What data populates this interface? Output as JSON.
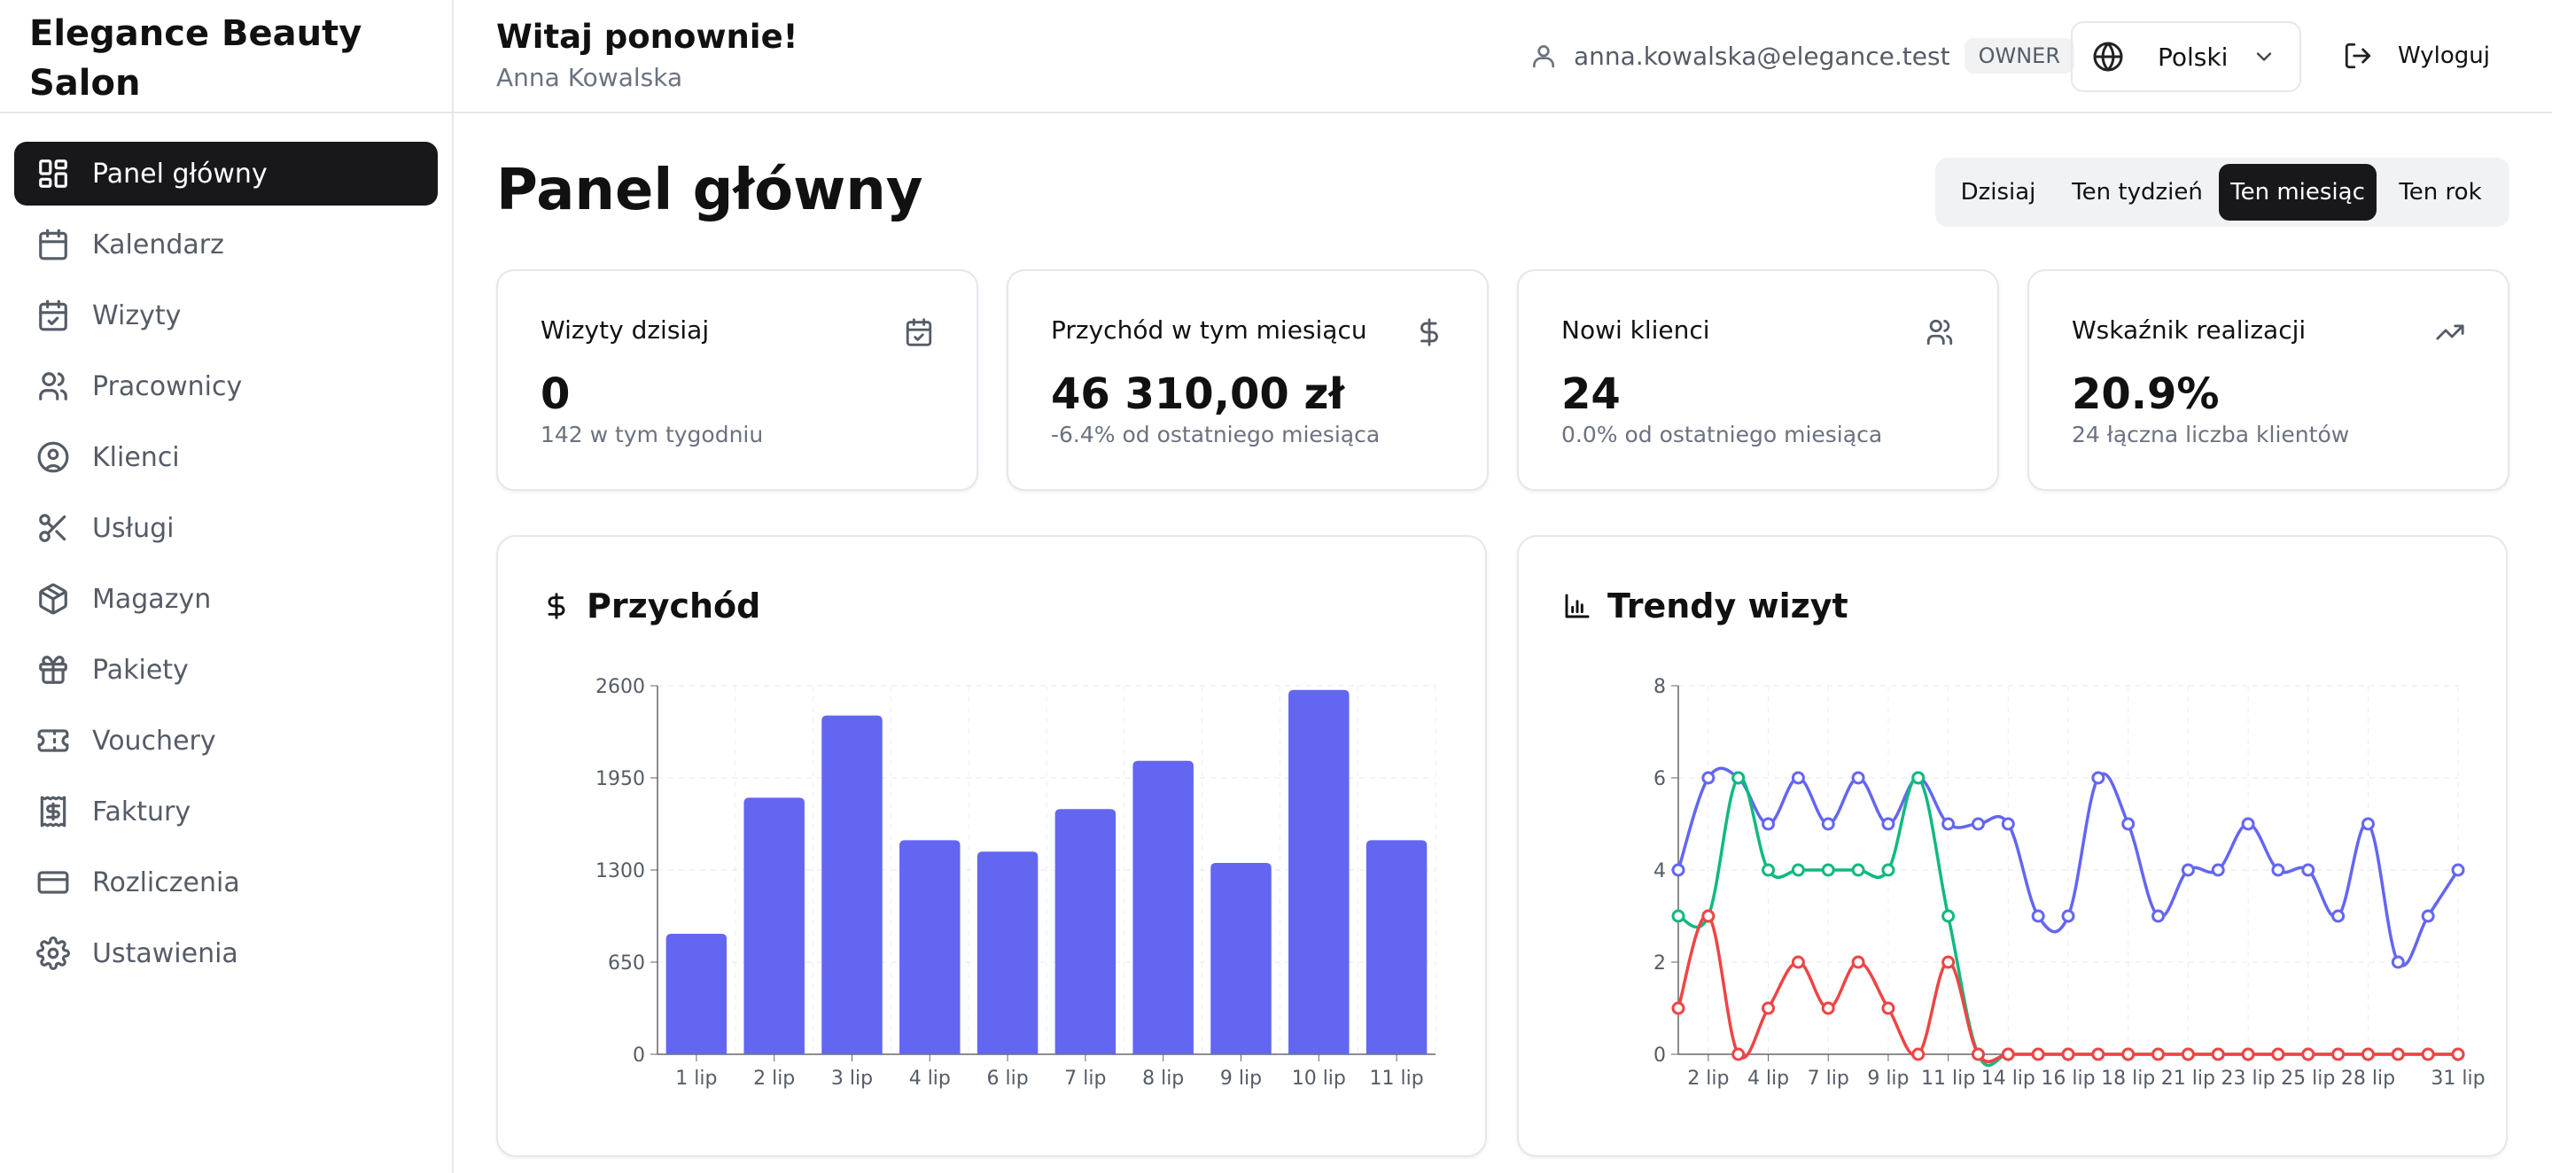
{
  "app": {
    "name": "Elegance Beauty Salon"
  },
  "sidebar": {
    "items": [
      {
        "label": "Panel główny",
        "icon": "dashboard-icon",
        "active": true
      },
      {
        "label": "Kalendarz",
        "icon": "calendar-icon",
        "active": false
      },
      {
        "label": "Wizyty",
        "icon": "calendar-check-icon",
        "active": false
      },
      {
        "label": "Pracownicy",
        "icon": "users-icon",
        "active": false
      },
      {
        "label": "Klienci",
        "icon": "user-circle-icon",
        "active": false
      },
      {
        "label": "Usługi",
        "icon": "scissors-icon",
        "active": false
      },
      {
        "label": "Magazyn",
        "icon": "package-icon",
        "active": false
      },
      {
        "label": "Pakiety",
        "icon": "gift-icon",
        "active": false
      },
      {
        "label": "Vouchery",
        "icon": "ticket-icon",
        "active": false
      },
      {
        "label": "Faktury",
        "icon": "receipt-icon",
        "active": false
      },
      {
        "label": "Rozliczenia",
        "icon": "credit-card-icon",
        "active": false
      },
      {
        "label": "Ustawienia",
        "icon": "gear-icon",
        "active": false
      }
    ]
  },
  "header": {
    "welcome": "Witaj ponownie!",
    "user_name": "Anna Kowalska",
    "email": "anna.kowalska@elegance.test",
    "role": "OWNER",
    "language": "Polski",
    "logout": "Wyloguj"
  },
  "main": {
    "title": "Panel główny",
    "ranges": [
      {
        "label": "Dzisiaj",
        "active": false
      },
      {
        "label": "Ten tydzień",
        "active": false
      },
      {
        "label": "Ten miesiąc",
        "active": true
      },
      {
        "label": "Ten rok",
        "active": false
      }
    ],
    "kpis": [
      {
        "label": "Wizyty dzisiaj",
        "value": "0",
        "sub": "142 w tym tygodniu",
        "icon": "calendar-check-icon"
      },
      {
        "label": "Przychód w tym miesiącu",
        "value": "46 310,00 zł",
        "sub": "-6.4% od ostatniego miesiąca",
        "icon": "dollar-icon"
      },
      {
        "label": "Nowi klienci",
        "value": "24",
        "sub": "0.0% od ostatniego miesiąca",
        "icon": "users-icon"
      },
      {
        "label": "Wskaźnik realizacji",
        "value": "20.9%",
        "sub": "24 łączna liczba klientów",
        "icon": "trending-up-icon"
      }
    ],
    "revenue_card": {
      "title": "Przychód"
    },
    "trends_card": {
      "title": "Trendy wizyt"
    }
  },
  "colors": {
    "accent": "#6366f1",
    "green": "#10b981",
    "red": "#ef4444",
    "dark": "#18181b"
  },
  "chart_data": [
    {
      "type": "bar",
      "title": "Przychód",
      "categories": [
        "1 lip",
        "2 lip",
        "3 lip",
        "4 lip",
        "6 lip",
        "7 lip",
        "8 lip",
        "9 lip",
        "10 lip",
        "11 lip"
      ],
      "values": [
        850,
        1810,
        2390,
        1510,
        1430,
        1730,
        2070,
        1350,
        2570,
        1510
      ],
      "ylim": [
        0,
        2600
      ],
      "yticks": [
        0,
        650,
        1300,
        1950,
        2600
      ],
      "grid": true,
      "color": "#6366f1"
    },
    {
      "type": "line",
      "title": "Trendy wizyt",
      "x": [
        1,
        2,
        3,
        4,
        5,
        6,
        7,
        8,
        9,
        10,
        11,
        12,
        13,
        14,
        15,
        16,
        17,
        18,
        19,
        20,
        21,
        22,
        23,
        24,
        25,
        26,
        27
      ],
      "xtick_labels": [
        "2 lip",
        "4 lip",
        "7 lip",
        "9 lip",
        "11 lip",
        "14 lip",
        "16 lip",
        "18 lip",
        "21 lip",
        "23 lip",
        "25 lip",
        "28 lip",
        "31 lip"
      ],
      "xtick_positions": [
        2,
        4,
        6,
        8,
        10,
        12,
        14,
        16,
        18,
        20,
        22,
        24,
        27
      ],
      "ylim": [
        0,
        8
      ],
      "yticks": [
        0,
        2,
        4,
        6,
        8
      ],
      "grid": true,
      "series": [
        {
          "color": "#6366f1",
          "values": [
            4,
            6,
            6,
            5,
            6,
            5,
            6,
            5,
            6,
            5,
            5,
            5,
            3,
            3,
            6,
            5,
            3,
            4,
            4,
            5,
            4,
            4,
            3,
            5,
            2,
            3,
            4
          ]
        },
        {
          "color": "#10b981",
          "values": [
            3,
            3,
            6,
            4,
            4,
            4,
            4,
            4,
            6,
            3,
            0,
            0,
            0,
            0,
            0,
            0,
            0,
            0,
            0,
            0,
            0,
            0,
            0,
            0,
            0,
            0,
            0
          ]
        },
        {
          "color": "#ef4444",
          "values": [
            1,
            3,
            0,
            1,
            2,
            1,
            2,
            1,
            0,
            2,
            0,
            0,
            0,
            0,
            0,
            0,
            0,
            0,
            0,
            0,
            0,
            0,
            0,
            0,
            0,
            0,
            0
          ]
        }
      ]
    }
  ]
}
